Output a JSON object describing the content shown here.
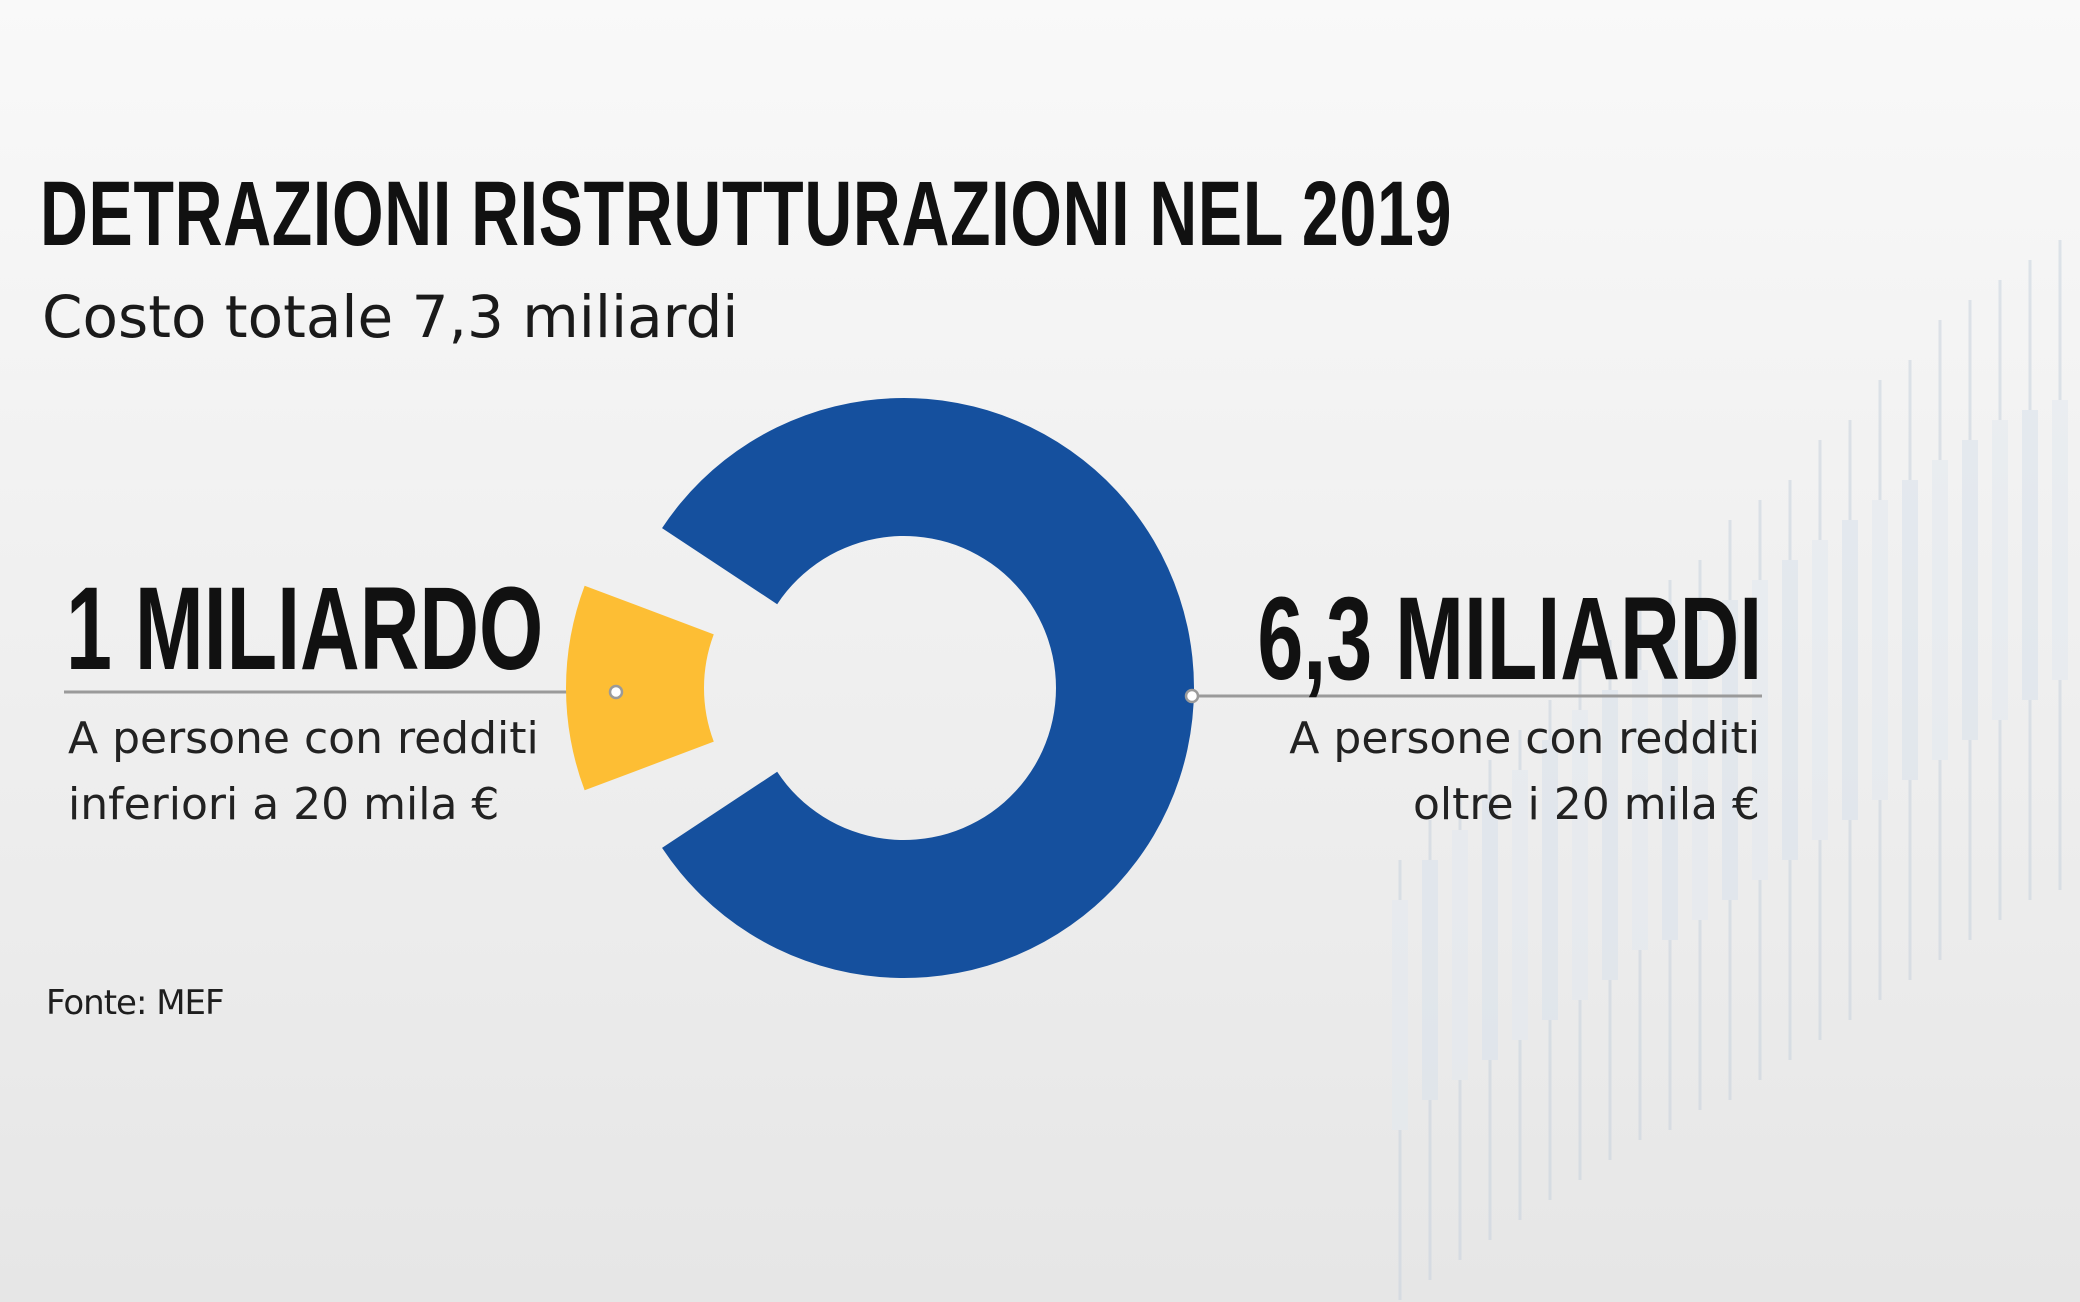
{
  "title": "DETRAZIONI RISTRUTTURAZIONI NEL 2019",
  "subtitle": "Costo totale 7,3 miliardi",
  "source": "Fonte: MEF",
  "colors": {
    "slice_small": "#FDBE34",
    "slice_large": "#15509E",
    "leader_line": "#9a9a9a"
  },
  "chart_data": {
    "type": "pie",
    "title": "DETRAZIONI RISTRUTTURAZIONI NEL 2019",
    "subtitle": "Costo totale 7,3 miliardi",
    "unit": "miliardi",
    "total": 7.3,
    "donut": true,
    "slices": [
      {
        "value": 1.0,
        "label": "1 MILIARDO",
        "description_lines": [
          "A persone con redditi",
          "inferiori a 20 mila €"
        ],
        "color": "#FDBE34",
        "exploded": true
      },
      {
        "value": 6.3,
        "label": "6,3 MILIARDI",
        "description_lines": [
          "A persone con redditi",
          "oltre i 20 mila €"
        ],
        "color": "#15509E",
        "exploded": false
      }
    ]
  }
}
